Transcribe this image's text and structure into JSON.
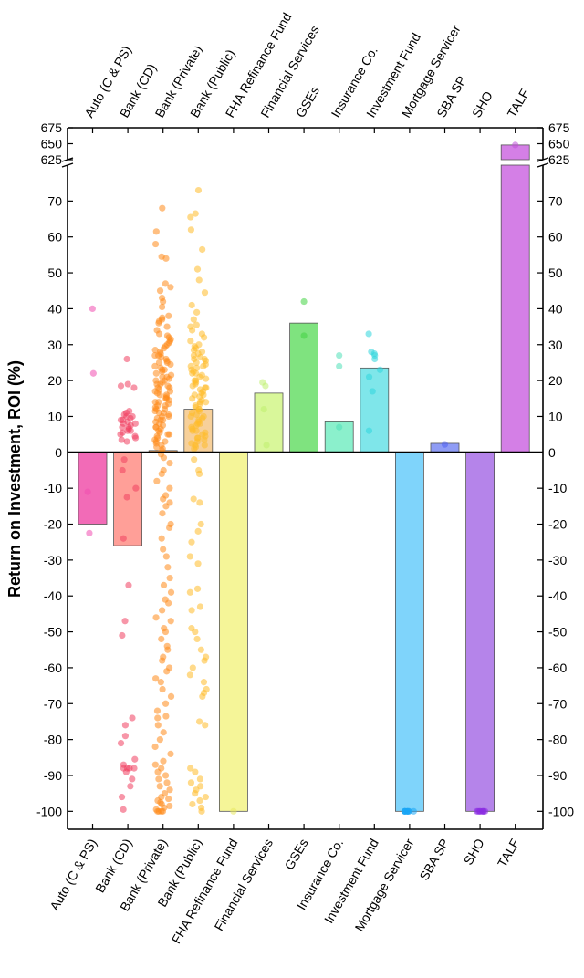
{
  "chart_data": {
    "type": "bar",
    "ylabel": "Return on Investment, ROI (%)",
    "ylim_lower": [
      -105,
      80
    ],
    "ylim_upper": [
      625,
      675
    ],
    "yticks_lower": [
      -100,
      -90,
      -80,
      -70,
      -60,
      -50,
      -40,
      -30,
      -20,
      -10,
      0,
      10,
      20,
      30,
      40,
      50,
      60,
      70
    ],
    "yticks_upper": [
      625,
      650,
      675
    ],
    "categories": [
      "Auto (C & PS)",
      "Bank (CD)",
      "Bank (Private)",
      "Bank (Public)",
      "FHA Refinance Fund",
      "Financial Services",
      "GSEs",
      "Insurance Co.",
      "Investment Fund",
      "Mortgage Servicer",
      "SBA SP",
      "SHO",
      "TALF"
    ],
    "values": [
      -20,
      -26,
      0.5,
      12,
      -100,
      16.5,
      36,
      8.5,
      23.5,
      -100,
      2.5,
      -100,
      648
    ],
    "bar_colors": [
      "#f26bb7",
      "#ff9f98",
      "#ffa85c",
      "#f7d09a",
      "#f5f598",
      "#d9f79a",
      "#7fe37f",
      "#8bf0cc",
      "#7fe6ea",
      "#7fd4fb",
      "#8f9cf5",
      "#b584ea",
      "#d47fe6"
    ],
    "point_colors": [
      "#f04fb0",
      "#f04060",
      "#ff8a1a",
      "#ffbb2a",
      "#e8e860",
      "#c0f070",
      "#44d444",
      "#50e0b8",
      "#30d6dc",
      "#1aa6f5",
      "#5060f0",
      "#8a2be2",
      "#c050d8"
    ],
    "points": [
      [
        40,
        22,
        -11,
        -22.5
      ],
      [
        26,
        19,
        18.5,
        18,
        11.5,
        11,
        10.5,
        10,
        9.5,
        9,
        8.5,
        8,
        7.5,
        7,
        6.5,
        6,
        5.5,
        5,
        4.5,
        4,
        3.5,
        3,
        8,
        9,
        10,
        7,
        6,
        -2,
        -5,
        -10,
        -12.5,
        -24,
        -37,
        -47,
        -51,
        -74,
        -76,
        -79,
        -81,
        -85.5,
        -87,
        -88,
        -88,
        -88,
        -88,
        -89,
        -91,
        -93,
        -96,
        -99.5
      ],
      [
        68,
        61.5,
        58,
        54.5,
        54,
        47,
        46,
        45,
        43,
        42,
        40.5,
        38,
        37.5,
        37,
        36.5,
        36,
        35,
        34,
        33,
        32.5,
        32,
        31.5,
        31,
        30.5,
        30,
        29.5,
        29,
        28.5,
        28,
        27.5,
        27,
        26.5,
        26,
        25.5,
        25,
        24.5,
        24,
        23.5,
        23,
        22.5,
        22,
        21.5,
        21,
        20.5,
        20,
        19.5,
        19,
        18.5,
        18,
        17.5,
        17,
        16.5,
        16,
        15.5,
        15,
        14.5,
        14,
        13.5,
        13,
        12.5,
        12,
        11.5,
        11,
        10.5,
        10,
        9.5,
        9,
        8.5,
        8,
        7.5,
        7,
        6.5,
        6,
        5.5,
        5,
        4.5,
        4,
        3.5,
        3,
        2.5,
        2,
        1.5,
        1,
        0.5,
        27,
        25,
        23,
        21,
        19,
        17,
        15,
        13,
        11,
        9,
        7,
        5,
        3,
        20,
        18,
        16,
        14,
        12,
        10,
        -0.5,
        -1.5,
        -3,
        -5,
        -6,
        -8,
        -10,
        -12,
        -13,
        -14,
        -15,
        -17,
        -20,
        -21,
        -24,
        -27,
        -29,
        -32,
        -35,
        -37,
        -39,
        -41,
        -42,
        -44,
        -46,
        -47,
        -49,
        -50,
        -52,
        -54,
        -55,
        -57,
        -58,
        -60,
        -61,
        -63,
        -64,
        -66,
        -68,
        -70,
        -72,
        -73.5,
        -74,
        -76,
        -78,
        -80,
        -82,
        -84,
        -86,
        -87,
        -88,
        -89,
        -90,
        -91,
        -92,
        -93,
        -94,
        -95,
        -96,
        -96.5,
        -97,
        -97.5,
        -98,
        -98.5,
        -99,
        -99.5,
        -100,
        -100,
        -100,
        -100
      ],
      [
        73,
        66.5,
        65.5,
        62,
        56.5,
        51,
        48,
        44.5,
        41,
        39,
        37,
        35.5,
        35,
        34,
        33,
        32,
        31,
        30,
        29.5,
        29,
        28.5,
        28,
        27.5,
        27,
        26.5,
        26,
        25.5,
        25,
        24.5,
        24,
        23.5,
        23,
        22.5,
        22,
        21.5,
        21,
        20.5,
        20,
        19.5,
        19,
        18.5,
        18,
        17.5,
        17,
        16.5,
        16,
        15.5,
        15,
        14.5,
        14,
        13.5,
        13,
        12.5,
        12,
        11.5,
        11,
        10.5,
        10,
        9.5,
        9,
        8.5,
        8,
        7.5,
        7,
        6.5,
        6,
        5.5,
        5,
        4.5,
        4,
        3.5,
        3,
        2.5,
        2,
        1.5,
        1,
        26,
        24,
        22,
        20,
        18,
        16,
        14,
        12,
        10,
        8,
        6,
        4,
        2,
        -2,
        -5,
        -6,
        -13,
        -14,
        -20,
        -22,
        -25,
        -29,
        -31,
        -38,
        -39,
        -43,
        -44,
        -49,
        -50,
        -52,
        -55,
        -57,
        -58,
        -60,
        -62,
        -64,
        -66,
        -67,
        -68,
        -75,
        -76,
        -88,
        -89,
        -91,
        -92,
        -93,
        -94,
        -95,
        -96,
        -97,
        -98,
        -99,
        -100
      ],
      [
        -100
      ],
      [
        19.5,
        18.5,
        12,
        2
      ],
      [
        42,
        32.5
      ],
      [
        27,
        24,
        7
      ],
      [
        33,
        28,
        27.5,
        27,
        26,
        23,
        21,
        17,
        6
      ],
      [
        -100,
        -100,
        -100,
        -100,
        -100,
        -100,
        -100,
        -100,
        -100,
        -100
      ],
      [
        2.2
      ],
      [
        -100,
        -100,
        -100,
        -100,
        -100,
        -100,
        -100,
        -100
      ],
      [
        648
      ]
    ]
  }
}
